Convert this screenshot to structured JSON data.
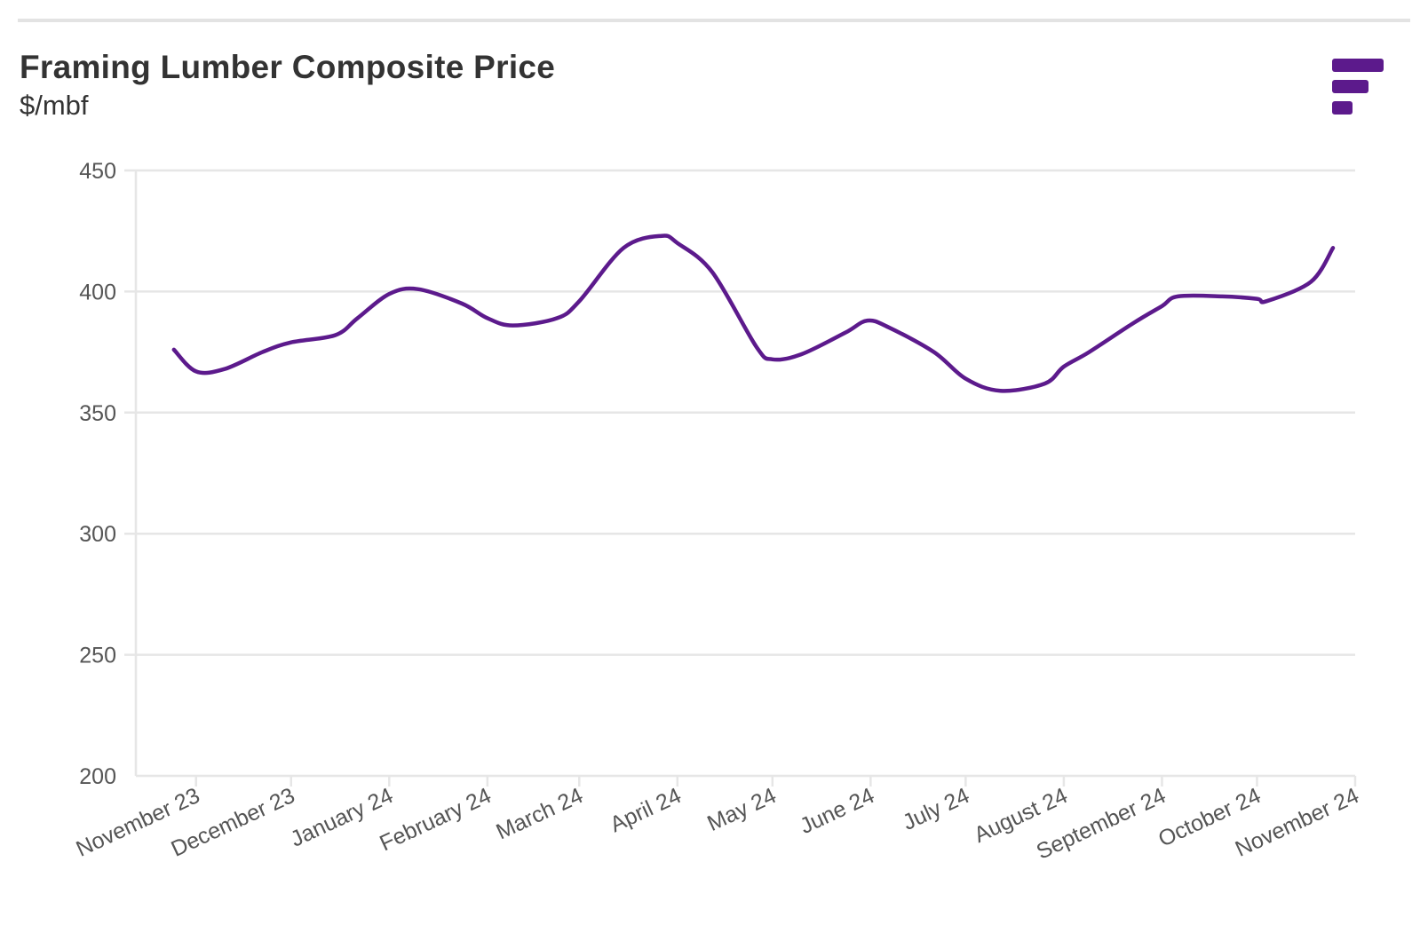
{
  "header": {
    "title": "Framing Lumber Composite Price",
    "subtitle": "$/mbf"
  },
  "colors": {
    "series": "#5c1a8c",
    "logo": "#5c1a8c",
    "grid": "#e6e6e6",
    "axis_text": "#555555"
  },
  "logo": {
    "icon": "filter-bars-icon"
  },
  "chart_data": {
    "type": "line",
    "title": "Framing Lumber Composite Price",
    "ylabel": "$/mbf",
    "xlabel": "",
    "ylim": [
      200,
      450
    ],
    "yticks": [
      200,
      250,
      300,
      350,
      400,
      450
    ],
    "grid": true,
    "legend": "none",
    "x_ticks": [
      {
        "label": "November 23",
        "date": "2023-11-01"
      },
      {
        "label": "December 23",
        "date": "2023-12-01"
      },
      {
        "label": "January 24",
        "date": "2024-01-01"
      },
      {
        "label": "February 24",
        "date": "2024-02-01"
      },
      {
        "label": "March 24",
        "date": "2024-03-01"
      },
      {
        "label": "April 24",
        "date": "2024-04-01"
      },
      {
        "label": "May 24",
        "date": "2024-05-01"
      },
      {
        "label": "June 24",
        "date": "2024-06-01"
      },
      {
        "label": "July 24",
        "date": "2024-07-01"
      },
      {
        "label": "August 24",
        "date": "2024-08-01"
      },
      {
        "label": "September 24",
        "date": "2024-09-01"
      },
      {
        "label": "October 24",
        "date": "2024-10-01"
      },
      {
        "label": "November 24",
        "date": "2024-11-01"
      }
    ],
    "series": [
      {
        "points": [
          {
            "x": "2023-10-25",
            "y": 376
          },
          {
            "x": "2023-11-01",
            "y": 367
          },
          {
            "x": "2023-11-10",
            "y": 368
          },
          {
            "x": "2023-11-22",
            "y": 375
          },
          {
            "x": "2023-12-01",
            "y": 379
          },
          {
            "x": "2023-12-15",
            "y": 382
          },
          {
            "x": "2023-12-22",
            "y": 389
          },
          {
            "x": "2024-01-01",
            "y": 399
          },
          {
            "x": "2024-01-10",
            "y": 401
          },
          {
            "x": "2024-01-24",
            "y": 395
          },
          {
            "x": "2024-02-01",
            "y": 389
          },
          {
            "x": "2024-02-09",
            "y": 386
          },
          {
            "x": "2024-02-23",
            "y": 389
          },
          {
            "x": "2024-03-01",
            "y": 396
          },
          {
            "x": "2024-03-15",
            "y": 418
          },
          {
            "x": "2024-03-27",
            "y": 423
          },
          {
            "x": "2024-04-01",
            "y": 420
          },
          {
            "x": "2024-04-12",
            "y": 408
          },
          {
            "x": "2024-04-26",
            "y": 377
          },
          {
            "x": "2024-05-01",
            "y": 372
          },
          {
            "x": "2024-05-10",
            "y": 374
          },
          {
            "x": "2024-05-24",
            "y": 383
          },
          {
            "x": "2024-05-31",
            "y": 388
          },
          {
            "x": "2024-06-07",
            "y": 385
          },
          {
            "x": "2024-06-21",
            "y": 375
          },
          {
            "x": "2024-07-01",
            "y": 364
          },
          {
            "x": "2024-07-12",
            "y": 359
          },
          {
            "x": "2024-07-26",
            "y": 362
          },
          {
            "x": "2024-08-01",
            "y": 369
          },
          {
            "x": "2024-08-09",
            "y": 375
          },
          {
            "x": "2024-08-23",
            "y": 387
          },
          {
            "x": "2024-09-01",
            "y": 394
          },
          {
            "x": "2024-09-06",
            "y": 398
          },
          {
            "x": "2024-09-20",
            "y": 398
          },
          {
            "x": "2024-10-01",
            "y": 397
          },
          {
            "x": "2024-10-04",
            "y": 396
          },
          {
            "x": "2024-10-18",
            "y": 404
          },
          {
            "x": "2024-10-25",
            "y": 418
          }
        ]
      }
    ]
  }
}
